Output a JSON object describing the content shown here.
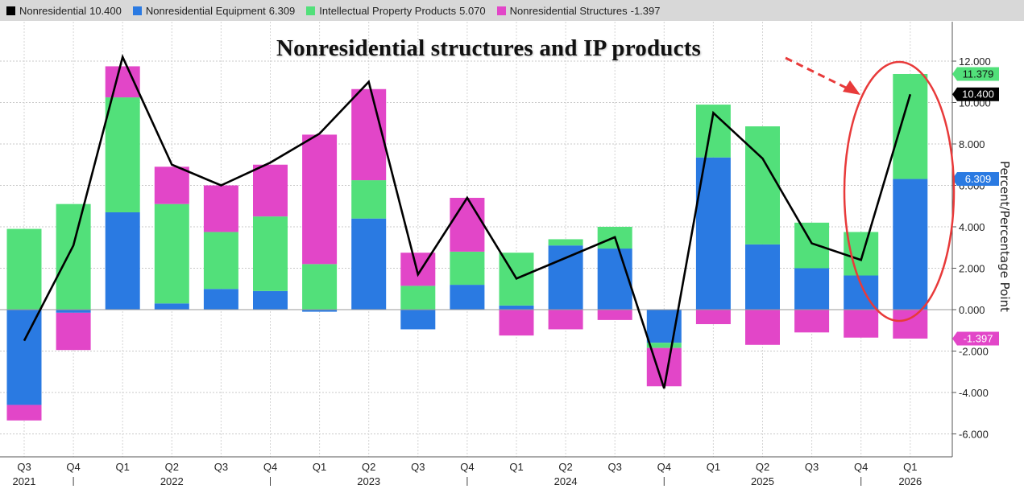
{
  "legend": [
    {
      "label": "Nonresidential",
      "value": "10.400",
      "color": "#000000"
    },
    {
      "label": "Nonresidential Equipment",
      "value": "6.309",
      "color": "#2a7ae2"
    },
    {
      "label": "Intellectual Property Products",
      "value": "5.070",
      "color": "#52e07a"
    },
    {
      "label": "Nonresidential Structures",
      "value": "-1.397",
      "color": "#e246c8"
    }
  ],
  "annotation": "Nonresidential structures and IP products",
  "value_tags": [
    {
      "text": "11.379",
      "value": 11.379,
      "color": "#52e07a",
      "text_color": "#111111"
    },
    {
      "text": "10.400",
      "value": 10.4,
      "color": "#000000",
      "text_color": "#ffffff"
    },
    {
      "text": "6.309",
      "value": 6.309,
      "color": "#2a7ae2",
      "text_color": "#ffffff"
    },
    {
      "text": "-1.397",
      "value": -1.397,
      "color": "#e246c8",
      "text_color": "#ffffff"
    }
  ],
  "chart_data": {
    "type": "bar",
    "stacked": true,
    "categories": [
      "Q3 2021",
      "Q4 2021",
      "Q1 2022",
      "Q2 2022",
      "Q3 2022",
      "Q4 2022",
      "Q1 2023",
      "Q2 2023",
      "Q3 2023",
      "Q4 2023",
      "Q1 2024",
      "Q2 2024",
      "Q3 2024",
      "Q4 2024",
      "Q1 2025",
      "Q2 2025",
      "Q3 2025",
      "Q4 2025",
      "Q1 2026"
    ],
    "quarter_labels": [
      "Q3",
      "Q4",
      "Q1",
      "Q2",
      "Q3",
      "Q4",
      "Q1",
      "Q2",
      "Q3",
      "Q4",
      "Q1",
      "Q2",
      "Q3",
      "Q4",
      "Q1",
      "Q2",
      "Q3",
      "Q4",
      "Q1"
    ],
    "year_labels": [
      {
        "label": "2021",
        "index": 0
      },
      {
        "label": "2022",
        "index": 3
      },
      {
        "label": "2023",
        "index": 7
      },
      {
        "label": "2024",
        "index": 11
      },
      {
        "label": "2025",
        "index": 15
      },
      {
        "label": "2026",
        "index": 18
      }
    ],
    "year_separators": [
      1,
      5,
      9,
      13,
      17
    ],
    "series": [
      {
        "name": "Nonresidential Equipment",
        "color": "#2a7ae2",
        "values": [
          -4.6,
          -0.15,
          4.7,
          0.3,
          1.0,
          0.9,
          -0.1,
          4.4,
          -0.95,
          1.2,
          0.2,
          3.1,
          2.95,
          -1.6,
          7.35,
          3.15,
          2.0,
          1.65,
          6.309
        ]
      },
      {
        "name": "Intellectual Property Products",
        "color": "#52e07a",
        "values": [
          3.9,
          5.1,
          5.55,
          4.8,
          2.75,
          3.6,
          2.2,
          1.85,
          1.15,
          1.6,
          2.55,
          0.3,
          1.05,
          -0.25,
          2.55,
          5.7,
          2.2,
          2.1,
          5.07
        ]
      },
      {
        "name": "Nonresidential Structures",
        "color": "#e246c8",
        "values": [
          -0.75,
          -1.8,
          1.5,
          1.8,
          2.25,
          2.5,
          6.25,
          4.4,
          1.6,
          2.6,
          -1.25,
          -0.95,
          -0.5,
          -1.85,
          -0.7,
          -1.7,
          -1.1,
          -1.35,
          -1.397
        ]
      }
    ],
    "line": {
      "name": "Nonresidential",
      "color": "#000000",
      "values": [
        -1.5,
        3.1,
        12.2,
        7.0,
        6.0,
        7.1,
        8.5,
        11.0,
        1.7,
        5.4,
        1.5,
        2.5,
        3.5,
        -3.8,
        9.5,
        7.3,
        3.2,
        2.4,
        10.4
      ]
    },
    "ylabel": "Percent/Percentage Point",
    "ylim": [
      -7,
      14
    ],
    "yticks": [
      12,
      10,
      8,
      6,
      4,
      2,
      0,
      -2,
      -4,
      -6
    ],
    "ytick_labels": [
      "12.000",
      "10.000",
      "8.000",
      "6.000",
      "4.000",
      "2.000",
      "0.000",
      "-2.000",
      "-4.000",
      "-6.000"
    ],
    "grid": true,
    "legend_position": "top"
  }
}
